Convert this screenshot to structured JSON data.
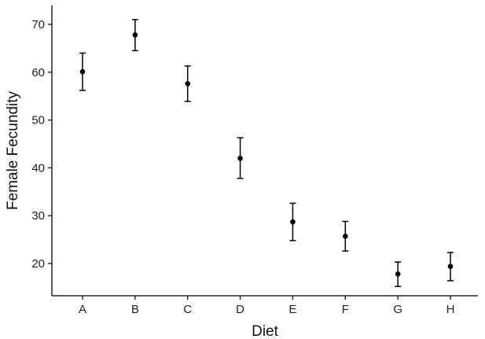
{
  "chart_data": {
    "type": "scatter",
    "xlabel": "Diet",
    "ylabel": "Female Fecundity",
    "categories": [
      "A",
      "B",
      "C",
      "D",
      "E",
      "F",
      "G",
      "H"
    ],
    "series": [
      {
        "values": [
          60.1,
          67.8,
          57.6,
          42.0,
          28.7,
          25.7,
          17.8,
          19.4
        ],
        "error_low": [
          56.2,
          64.5,
          53.9,
          37.8,
          24.8,
          22.6,
          15.2,
          16.4
        ],
        "error_high": [
          64.0,
          71.0,
          61.3,
          46.3,
          32.6,
          28.8,
          20.3,
          22.3
        ]
      }
    ],
    "ylim": [
      12.5,
      73.5
    ],
    "yticks": [
      20,
      30,
      40,
      50,
      60,
      70
    ],
    "grid": false,
    "colors": {
      "marker": "#000000",
      "axis": "#000000"
    }
  }
}
